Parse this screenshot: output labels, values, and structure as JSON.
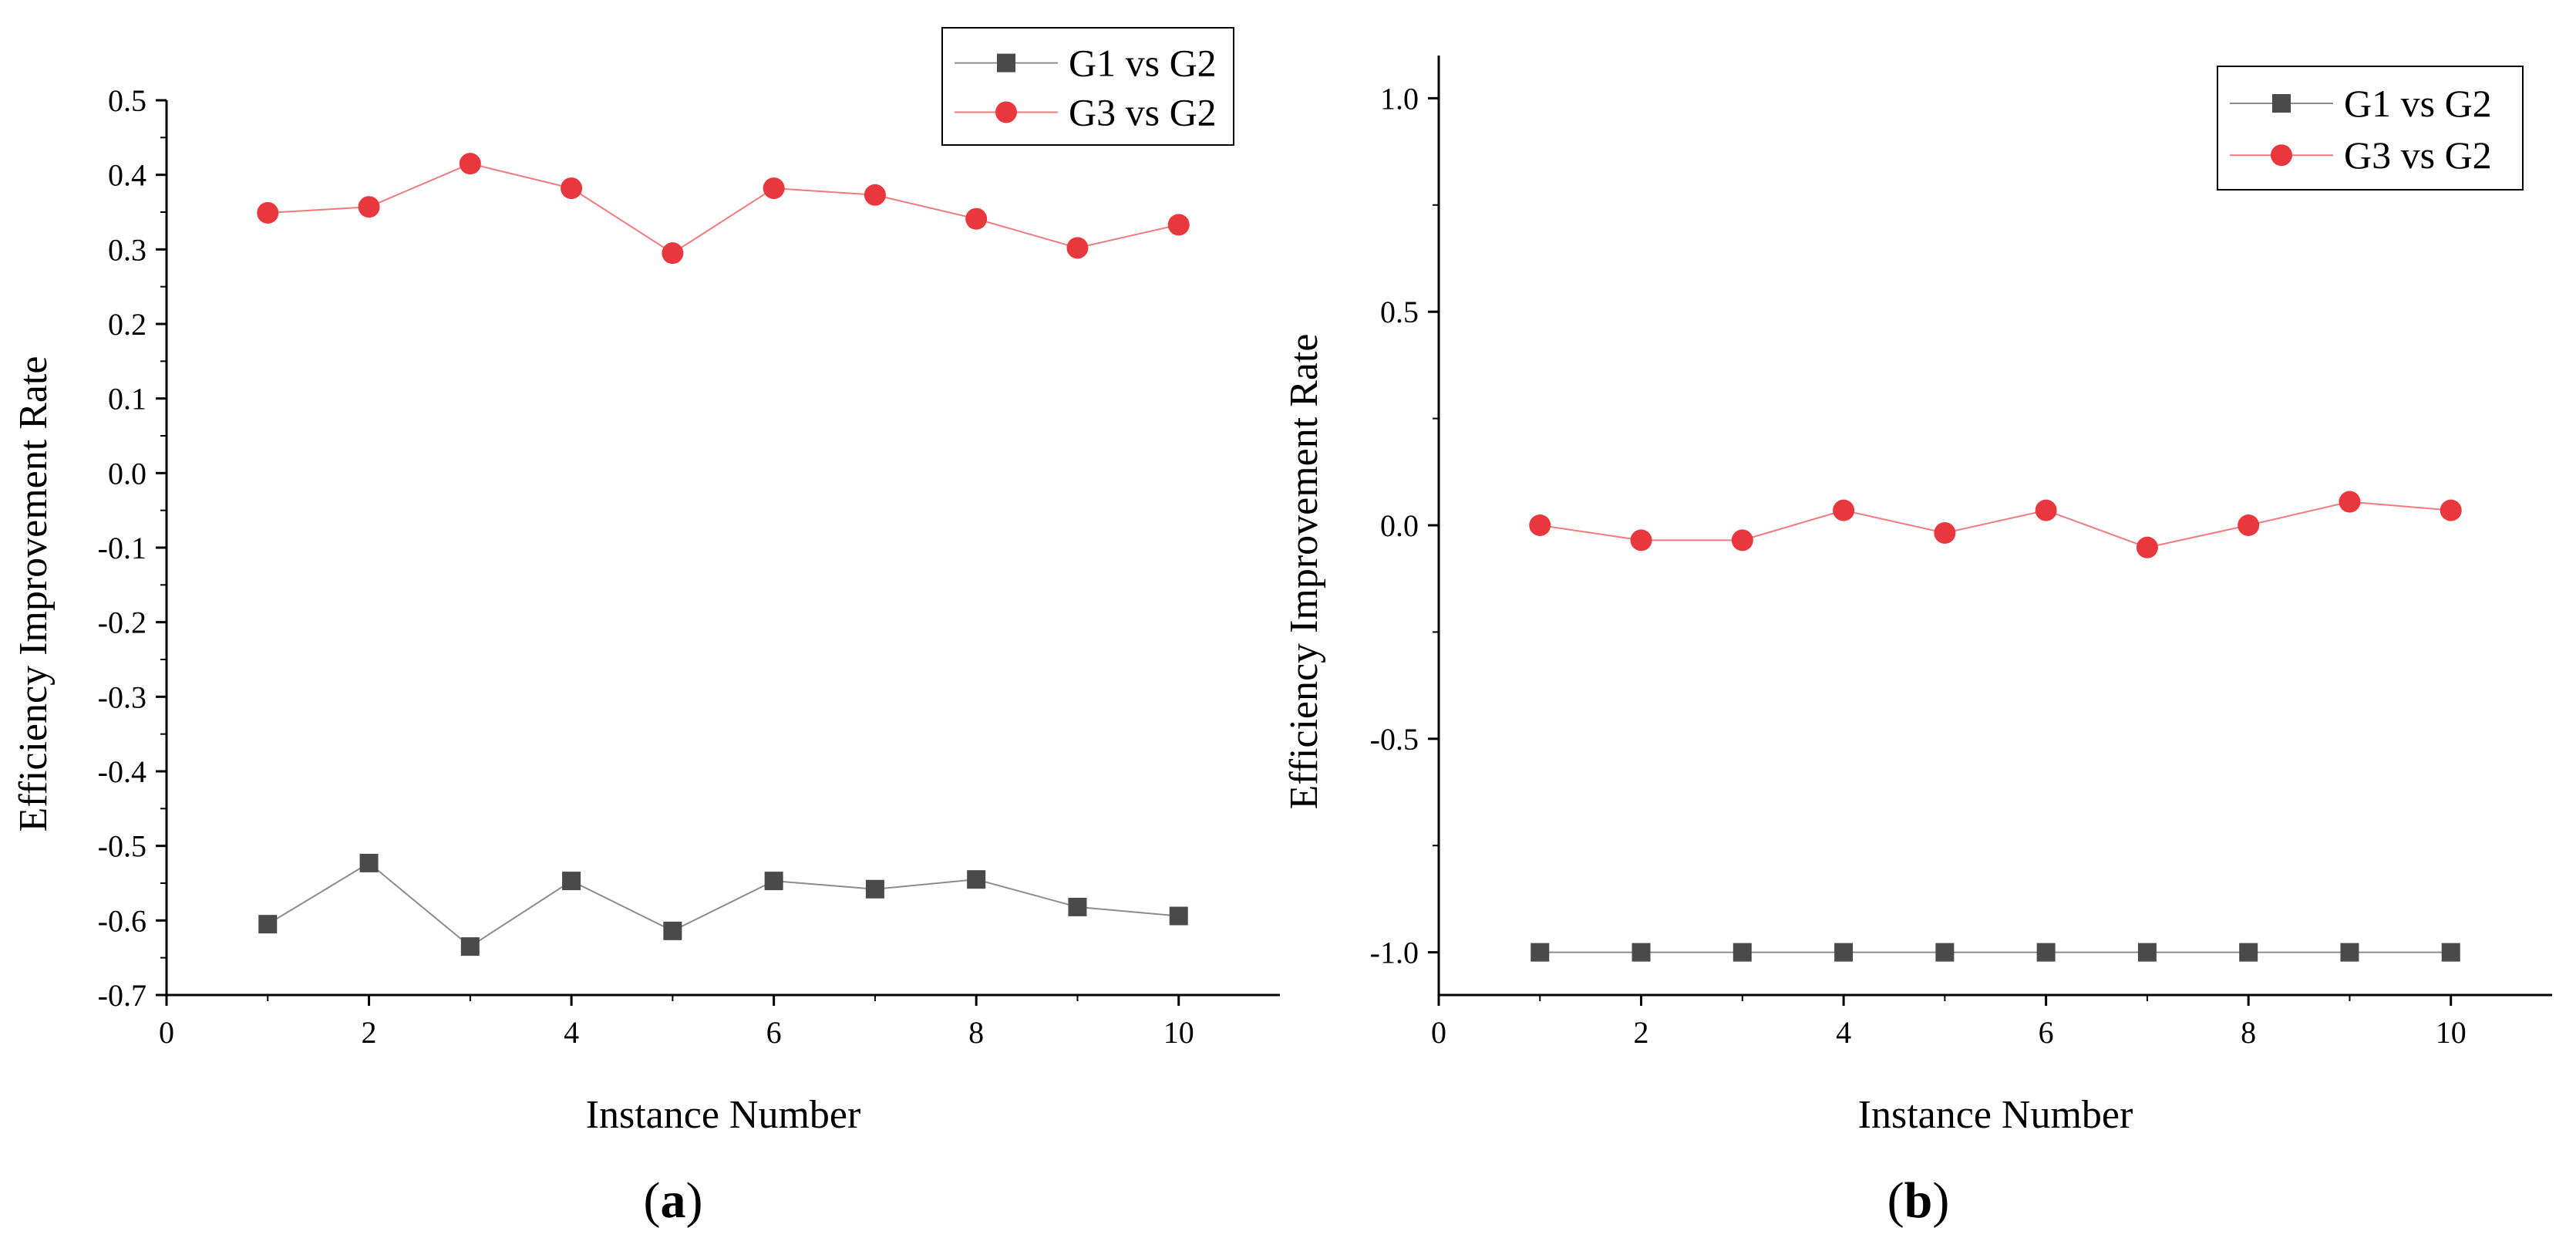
{
  "chart_data": [
    {
      "type": "line",
      "panel": "a",
      "panel_label": "(a)",
      "panel_letter": "a",
      "xlabel": "Instance Number",
      "ylabel": "Efficiency Improvement Rate",
      "xlim": [
        0,
        11
      ],
      "ylim": [
        -0.7,
        0.5
      ],
      "xticks": [
        0,
        2,
        4,
        6,
        8,
        10
      ],
      "xtick_labels": [
        "0",
        "2",
        "4",
        "6",
        "8",
        "10"
      ],
      "yticks": [
        -0.7,
        -0.6,
        -0.5,
        -0.4,
        -0.3,
        -0.2,
        -0.1,
        0.0,
        0.1,
        0.2,
        0.3,
        0.4,
        0.5
      ],
      "ytick_labels": [
        "-0.7",
        "-0.6",
        "-0.5",
        "-0.4",
        "-0.3",
        "-0.2",
        "-0.1",
        "0.0",
        "0.1",
        "0.2",
        "0.3",
        "0.4",
        "0.5"
      ],
      "grid": false,
      "legend_position": "top-right",
      "x": [
        1,
        2,
        3,
        4,
        5,
        6,
        7,
        8,
        9,
        10
      ],
      "series": [
        {
          "name": "G1 vs G2",
          "marker": "square",
          "color": "#4a4a4a",
          "line_color": "#8c8c8c",
          "values": [
            -0.605,
            -0.523,
            -0.635,
            -0.547,
            -0.614,
            -0.547,
            -0.558,
            -0.545,
            -0.582,
            -0.594
          ]
        },
        {
          "name": "G3 vs G2",
          "marker": "circle",
          "color": "#e8383d",
          "line_color": "#f07a7e",
          "values": [
            0.349,
            0.357,
            0.415,
            0.382,
            0.295,
            0.382,
            0.373,
            0.341,
            0.302,
            0.333
          ]
        }
      ]
    },
    {
      "type": "line",
      "panel": "b",
      "panel_label": "(b)",
      "panel_letter": "b",
      "xlabel": "Instance Number",
      "ylabel": "Efficiency Improvement Rate",
      "xlim": [
        0,
        11
      ],
      "ylim": [
        -1.1,
        1.1
      ],
      "xticks": [
        0,
        2,
        4,
        6,
        8,
        10
      ],
      "xtick_labels": [
        "0",
        "2",
        "4",
        "6",
        "8",
        "10"
      ],
      "yticks": [
        -1.0,
        -0.5,
        0.0,
        0.5,
        1.0
      ],
      "ytick_labels": [
        "-1.0",
        "-0.5",
        "0.0",
        "0.5",
        "1.0"
      ],
      "grid": false,
      "legend_position": "top-right",
      "x": [
        1,
        2,
        3,
        4,
        5,
        6,
        7,
        8,
        9,
        10
      ],
      "series": [
        {
          "name": "G1 vs G2",
          "marker": "square",
          "color": "#4a4a4a",
          "line_color": "#8c8c8c",
          "values": [
            -1.0,
            -1.0,
            -1.0,
            -1.0,
            -1.0,
            -1.0,
            -1.0,
            -1.0,
            -1.0,
            -1.0
          ]
        },
        {
          "name": "G3 vs G2",
          "marker": "circle",
          "color": "#e8383d",
          "line_color": "#f07a7e",
          "values": [
            0.0,
            -0.035,
            -0.035,
            0.035,
            -0.018,
            0.035,
            -0.052,
            0.0,
            0.055,
            0.035
          ]
        }
      ]
    }
  ]
}
